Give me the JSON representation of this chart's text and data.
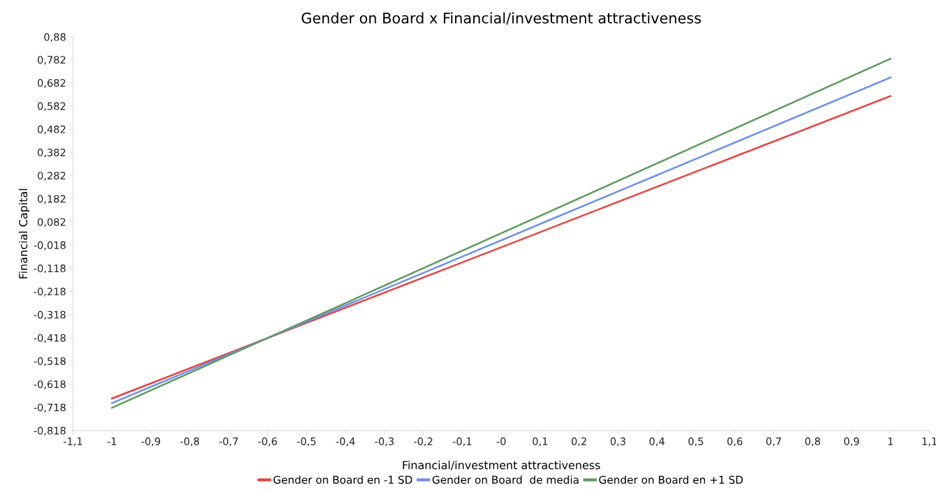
{
  "chart_data": {
    "type": "line",
    "title": "Gender on Board x Financial/investment attractiveness",
    "xlabel": "Financial/investment attractiveness",
    "ylabel": "Financial Capital",
    "x": [
      -1,
      1
    ],
    "series": [
      {
        "name": "Gender on Board en -1 SD",
        "color": "#e8423f",
        "values": [
          -0.68,
          0.625
        ]
      },
      {
        "name": "Gender on Board  de media",
        "color": "#6b8ef0",
        "values": [
          -0.7,
          0.705
        ]
      },
      {
        "name": "Gender on Board en +1 SD",
        "color": "#5e9a5e",
        "values": [
          -0.72,
          0.786
        ]
      }
    ],
    "xlim": [
      -1.1,
      1.1
    ],
    "xticks": [
      {
        "value": -1.1,
        "label": "-1,1"
      },
      {
        "value": -1,
        "label": "-1"
      },
      {
        "value": -0.9,
        "label": "-0,9"
      },
      {
        "value": -0.8,
        "label": "-0,8"
      },
      {
        "value": -0.7,
        "label": "-0,7"
      },
      {
        "value": -0.6,
        "label": "-0,6"
      },
      {
        "value": -0.5,
        "label": "-0,5"
      },
      {
        "value": -0.4,
        "label": "-0,4"
      },
      {
        "value": -0.3,
        "label": "-0,3"
      },
      {
        "value": -0.2,
        "label": "-0,2"
      },
      {
        "value": -0.1,
        "label": "-0,1"
      },
      {
        "value": 0,
        "label": "-0"
      },
      {
        "value": 0.1,
        "label": "0,1"
      },
      {
        "value": 0.2,
        "label": "0,2"
      },
      {
        "value": 0.3,
        "label": "0,3"
      },
      {
        "value": 0.4,
        "label": "0,4"
      },
      {
        "value": 0.5,
        "label": "0,5"
      },
      {
        "value": 0.6,
        "label": "0,6"
      },
      {
        "value": 0.7,
        "label": "0,7"
      },
      {
        "value": 0.8,
        "label": "0,8"
      },
      {
        "value": 0.9,
        "label": "0,9"
      },
      {
        "value": 1,
        "label": "1"
      },
      {
        "value": 1.1,
        "label": "1,1"
      }
    ],
    "ylim": [
      -0.818,
      0.88
    ],
    "yticks": [
      {
        "value": -0.818,
        "label": "-0,818"
      },
      {
        "value": -0.718,
        "label": "-0,718"
      },
      {
        "value": -0.618,
        "label": "-0,618"
      },
      {
        "value": -0.518,
        "label": "-0,518"
      },
      {
        "value": -0.418,
        "label": "-0,418"
      },
      {
        "value": -0.318,
        "label": "-0,318"
      },
      {
        "value": -0.218,
        "label": "-0,218"
      },
      {
        "value": -0.118,
        "label": "-0,118"
      },
      {
        "value": -0.018,
        "label": "-0,018"
      },
      {
        "value": 0.082,
        "label": "0,082"
      },
      {
        "value": 0.182,
        "label": "0,182"
      },
      {
        "value": 0.282,
        "label": "0,282"
      },
      {
        "value": 0.382,
        "label": "0,382"
      },
      {
        "value": 0.482,
        "label": "0,482"
      },
      {
        "value": 0.582,
        "label": "0,582"
      },
      {
        "value": 0.682,
        "label": "0,682"
      },
      {
        "value": 0.782,
        "label": "0,782"
      },
      {
        "value": 0.88,
        "label": "0,88"
      }
    ],
    "grid": false,
    "legend": "bottom",
    "marker": "none",
    "line_style": "solid"
  }
}
